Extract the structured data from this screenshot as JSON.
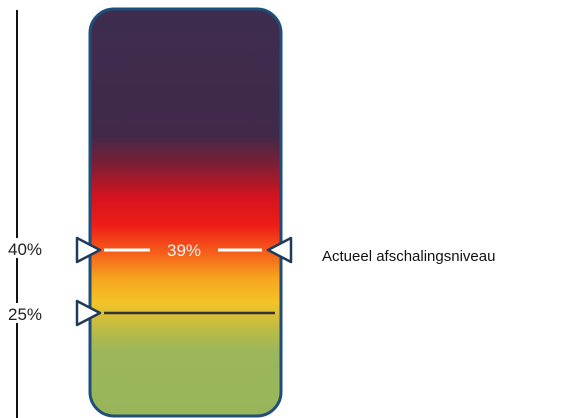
{
  "scale": {
    "markers": [
      {
        "label": "40%",
        "value": 40
      },
      {
        "label": "25%",
        "value": 25
      }
    ]
  },
  "current": {
    "label": "39%",
    "value": 39,
    "description": "Actueel afschalingsniveau"
  },
  "colors": {
    "outline": "#1f4e79",
    "deep_purple": "#3e2d4f",
    "red": "#e8141c",
    "orange": "#f5a21a",
    "yellow": "#f7c325",
    "green": "#9bb75a",
    "current_line": "#ffffff",
    "threshold_line": "#333333"
  }
}
